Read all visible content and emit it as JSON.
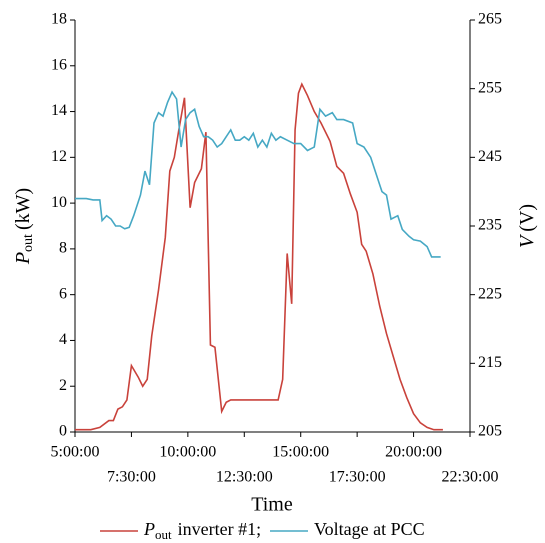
{
  "chart_data": {
    "type": "line",
    "xlabel": "Time",
    "ylabel": {
      "symbol": "P",
      "subscript": "out",
      "unit": "(kW)"
    },
    "y2label": {
      "symbol": "V",
      "unit": "(V)"
    },
    "xlim": [
      5,
      22.5
    ],
    "xticks": [
      {
        "value": 5,
        "label": "5:00:00"
      },
      {
        "value": 7.5,
        "label": "7:30:00"
      },
      {
        "value": 10,
        "label": "10:00:00"
      },
      {
        "value": 12.5,
        "label": "12:30:00"
      },
      {
        "value": 15,
        "label": "15:00:00"
      },
      {
        "value": 17.5,
        "label": "17:30:00"
      },
      {
        "value": 20,
        "label": "20:00:00"
      },
      {
        "value": 22.5,
        "label": "22:30:00"
      }
    ],
    "ylim": [
      0,
      18
    ],
    "yticks": [
      0,
      2,
      4,
      6,
      8,
      10,
      12,
      14,
      16,
      18
    ],
    "y2lim": [
      205,
      265
    ],
    "y2ticks": [
      205,
      215,
      225,
      235,
      245,
      255,
      265
    ],
    "series": [
      {
        "name": {
          "symbol": "P",
          "subscript": "out",
          "text": "inverter #1;"
        },
        "color": "#c9423b",
        "x": [
          5.0,
          5.7,
          6.1,
          6.5,
          6.7,
          6.9,
          7.1,
          7.3,
          7.5,
          7.8,
          8.0,
          8.2,
          8.4,
          8.7,
          9.0,
          9.2,
          9.4,
          9.6,
          9.85,
          10.1,
          10.3,
          10.6,
          10.8,
          11.0,
          11.2,
          11.5,
          11.7,
          11.9,
          12.5,
          13.0,
          13.5,
          14.0,
          14.2,
          14.4,
          14.6,
          14.75,
          14.9,
          15.05,
          15.3,
          15.6,
          15.9,
          16.3,
          16.6,
          16.9,
          17.2,
          17.5,
          17.7,
          17.9,
          18.2,
          18.5,
          18.8,
          19.1,
          19.4,
          19.7,
          20.0,
          20.3,
          20.6,
          20.9,
          21.3
        ],
        "values": [
          0.1,
          0.1,
          0.2,
          0.5,
          0.5,
          1.0,
          1.1,
          1.4,
          2.9,
          2.4,
          2.0,
          2.3,
          4.2,
          6.2,
          8.5,
          11.4,
          12.0,
          13.2,
          14.6,
          9.8,
          10.9,
          11.5,
          13.1,
          3.8,
          3.7,
          0.9,
          1.3,
          1.4,
          1.4,
          1.4,
          1.4,
          1.4,
          2.3,
          7.8,
          5.6,
          13.2,
          14.8,
          15.2,
          14.7,
          14.0,
          13.5,
          12.7,
          11.6,
          11.3,
          10.4,
          9.6,
          8.2,
          7.9,
          6.9,
          5.5,
          4.3,
          3.3,
          2.3,
          1.5,
          0.8,
          0.4,
          0.2,
          0.1,
          0.1
        ]
      },
      {
        "name": "Voltage at PCC",
        "color": "#46a8c4",
        "axis": "y2",
        "x": [
          5.0,
          5.5,
          5.8,
          6.1,
          6.2,
          6.4,
          6.6,
          6.8,
          7.0,
          7.2,
          7.4,
          7.6,
          7.9,
          8.1,
          8.3,
          8.5,
          8.7,
          8.9,
          9.1,
          9.3,
          9.5,
          9.7,
          9.9,
          10.1,
          10.3,
          10.5,
          10.7,
          10.9,
          11.1,
          11.3,
          11.5,
          11.7,
          11.9,
          12.1,
          12.3,
          12.5,
          12.7,
          12.9,
          13.1,
          13.3,
          13.5,
          13.7,
          13.9,
          14.1,
          14.4,
          14.7,
          15.0,
          15.3,
          15.6,
          15.85,
          16.1,
          16.4,
          16.6,
          16.9,
          17.3,
          17.5,
          17.8,
          18.1,
          18.3,
          18.6,
          18.8,
          19.0,
          19.3,
          19.5,
          19.8,
          20.0,
          20.3,
          20.6,
          20.8,
          21.2
        ],
        "values": [
          239,
          239,
          238.8,
          238.8,
          235.8,
          236.5,
          236,
          235,
          235,
          234.6,
          234.8,
          236.5,
          239.5,
          243,
          241,
          250,
          251.5,
          251,
          253,
          254.5,
          253.5,
          246.5,
          250.5,
          251.5,
          252,
          249.5,
          248,
          248,
          247.5,
          246.5,
          247,
          248,
          249,
          247.5,
          247.5,
          248,
          247.5,
          248.5,
          246.5,
          247.5,
          246.5,
          248.5,
          247.5,
          248,
          247.5,
          247,
          247,
          246,
          246.5,
          252,
          251,
          251.5,
          250.5,
          250.5,
          250,
          247,
          246.5,
          245,
          243,
          240,
          239.5,
          236,
          236.5,
          234.5,
          233.5,
          233,
          232.8,
          232,
          230.5,
          230.5
        ]
      }
    ]
  }
}
